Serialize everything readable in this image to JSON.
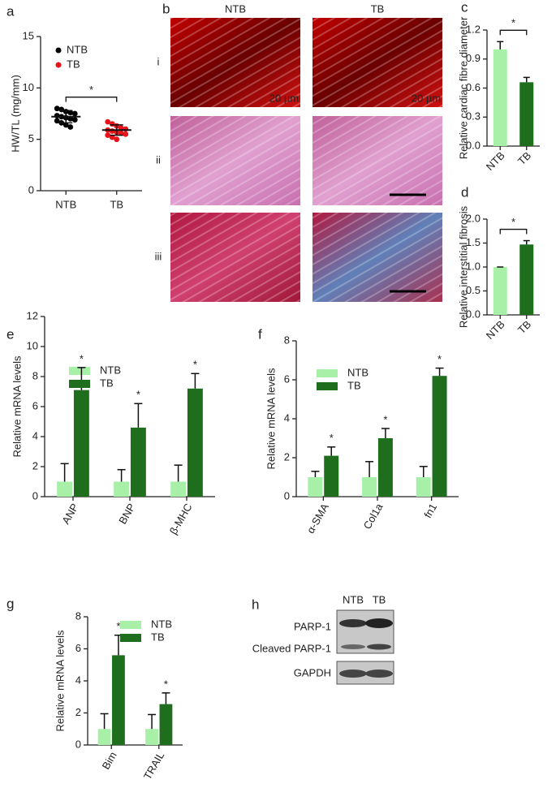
{
  "chart_data": [
    {
      "panel": "a",
      "type": "strip",
      "ylabel": "HW/TL (mg/mm)",
      "categories": [
        "NTB",
        "TB"
      ],
      "series": [
        {
          "name": "NTB",
          "color": "#000000",
          "values": [
            8.0,
            7.9,
            7.7,
            7.6,
            7.5,
            7.3,
            7.2,
            7.1,
            7.0,
            6.9,
            6.8,
            6.6,
            6.4,
            6.2
          ],
          "mean": 7.2,
          "error": 0.6
        },
        {
          "name": "TB",
          "color": "#e8141c",
          "values": [
            6.7,
            6.5,
            6.3,
            6.1,
            6.0,
            5.9,
            5.8,
            5.7,
            5.6,
            5.5,
            5.4,
            5.2,
            5.0
          ],
          "mean": 5.9,
          "error": 0.5
        }
      ],
      "ylim": [
        0,
        15
      ],
      "yticks": [
        0,
        5,
        10,
        15
      ],
      "significance": "*"
    },
    {
      "panel": "c",
      "type": "bar",
      "ylabel": "Relative cardiac fibre diameter",
      "categories": [
        "NTB",
        "TB"
      ],
      "values": [
        1.0,
        0.66
      ],
      "errors": [
        0.08,
        0.05
      ],
      "colors": [
        "#a8f0a8",
        "#1e6e1e"
      ],
      "ylim": [
        0,
        1.2
      ],
      "yticks": [
        {
          "value": 0,
          "label": "0.0"
        },
        0.3,
        0.6,
        0.9,
        1.2
      ],
      "significance": "*"
    },
    {
      "panel": "d",
      "type": "bar",
      "ylabel": "Relative interstitial fibrosis",
      "categories": [
        "NTB",
        "TB"
      ],
      "values": [
        1.0,
        1.47
      ],
      "errors": [
        0,
        0.08
      ],
      "colors": [
        "#a8f0a8",
        "#1e6e1e"
      ],
      "ylim": [
        0,
        2.0
      ],
      "yticks": [
        {
          "value": 0,
          "label": "0.0"
        },
        0.5,
        {
          "value": 1,
          "label": "1.0"
        },
        1.5,
        {
          "value": 2,
          "label": "2.0"
        }
      ],
      "significance": "*"
    },
    {
      "panel": "e",
      "type": "grouped_bar",
      "ylabel": "Relative mRNA levels",
      "categories": [
        "ANP",
        "BNP",
        "β-MHC"
      ],
      "series": [
        {
          "name": "NTB",
          "color": "#a8f0a8",
          "values": [
            1,
            1,
            1
          ],
          "errors": [
            1.2,
            0.8,
            1.1
          ]
        },
        {
          "name": "TB",
          "color": "#1e6e1e",
          "values": [
            7.1,
            4.6,
            7.2
          ],
          "errors": [
            1.5,
            1.6,
            1.0
          ]
        }
      ],
      "ylim": [
        0,
        12
      ],
      "yticks": [
        0,
        2,
        4,
        6,
        8,
        10,
        12
      ],
      "significance": [
        "*",
        "*",
        "*"
      ]
    },
    {
      "panel": "f",
      "type": "grouped_bar",
      "ylabel": "Relative mRNA levels",
      "categories": [
        "α-SMA",
        "Col1a",
        "fn1"
      ],
      "series": [
        {
          "name": "NTB",
          "color": "#a8f0a8",
          "values": [
            1,
            1,
            1
          ],
          "errors": [
            0.3,
            0.8,
            0.55
          ]
        },
        {
          "name": "TB",
          "color": "#1e6e1e",
          "values": [
            2.1,
            3.0,
            6.2
          ],
          "errors": [
            0.45,
            0.5,
            0.4
          ]
        }
      ],
      "ylim": [
        0,
        8
      ],
      "yticks": [
        0,
        2,
        4,
        6,
        8
      ],
      "significance": [
        "*",
        "*",
        "*"
      ]
    },
    {
      "panel": "g",
      "type": "grouped_bar",
      "ylabel": "Relative mRNA levels",
      "categories": [
        "Bim",
        "TRAIL"
      ],
      "series": [
        {
          "name": "NTB",
          "color": "#a8f0a8",
          "values": [
            1,
            1
          ],
          "errors": [
            0.95,
            0.9
          ]
        },
        {
          "name": "TB",
          "color": "#1e6e1e",
          "values": [
            5.6,
            2.55
          ],
          "errors": [
            1.25,
            0.7
          ]
        }
      ],
      "ylim": [
        0,
        8
      ],
      "yticks": [
        0,
        2,
        4,
        6,
        8
      ],
      "significance": [
        "*",
        "*"
      ]
    }
  ],
  "histology": {
    "panel": "b",
    "columns": [
      "NTB",
      "TB"
    ],
    "rows": [
      "i",
      "ii",
      "iii"
    ],
    "scale_labels": [
      "20 µm",
      "20 µm"
    ]
  },
  "western_blot": {
    "panel": "h",
    "columns": [
      "NTB",
      "TB"
    ],
    "bands": [
      "PARP-1",
      "Cleaved PARP-1",
      "GAPDH"
    ]
  }
}
